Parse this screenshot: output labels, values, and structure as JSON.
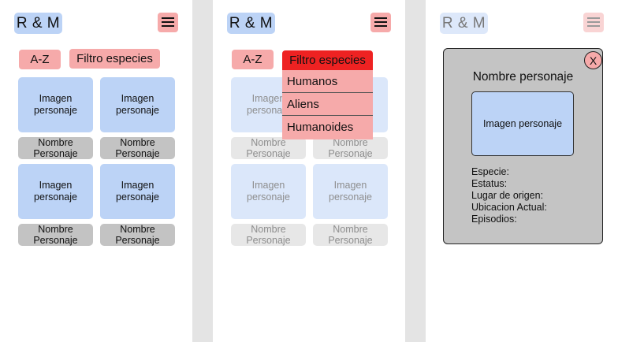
{
  "app": {
    "logo": "R & M"
  },
  "controls": {
    "sort_label": "A-Z",
    "filter_label": "Filtro especies"
  },
  "cards": [
    {
      "image_label": "Imagen personaje",
      "name": "Nombre Personaje"
    },
    {
      "image_label": "Imagen personaje",
      "name": "Nombre Personaje"
    },
    {
      "image_label": "Imagen personaje",
      "name": "Nombre Personaje"
    },
    {
      "image_label": "Imagen personaje",
      "name": "Nombre Personaje"
    }
  ],
  "dropdown": {
    "options": [
      "Humanos",
      "Aliens",
      "Humanoides"
    ]
  },
  "modal": {
    "close_label": "X",
    "title": "Nombre personaje",
    "image_label": "Imagen personaje",
    "fields": [
      "Especie:",
      "Estatus:",
      "Lugar de origen:",
      "Ubicacion Actual:",
      "Episodios:"
    ]
  },
  "icons": {
    "menu": "hamburger-menu-icon",
    "close": "close-icon"
  },
  "colors": {
    "primary_blue": "#bcd3f6",
    "accent_pink": "#f6aaaa",
    "active_red": "#ee2222",
    "name_gray": "#c3c3c3",
    "modal_gray": "#c4c4c4"
  }
}
